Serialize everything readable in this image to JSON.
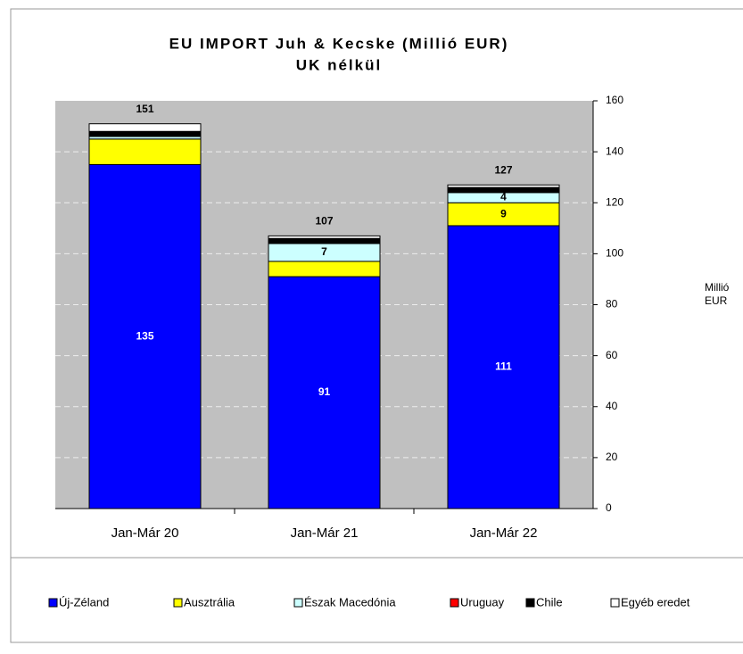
{
  "chart_data": {
    "type": "stacked_bar",
    "title": "EU IMPORT Juh & Kecske  (Millió EUR)",
    "subtitle": "UK nélkül",
    "y_axis_label": "Millió EUR",
    "categories": [
      "Jan-Már 20",
      "Jan-Már 21",
      "Jan-Már 22"
    ],
    "series": [
      {
        "name": "Új-Zéland",
        "color": "#0000ff",
        "values": [
          135,
          91,
          111
        ],
        "data_labels": [
          true,
          true,
          true
        ],
        "label_color": "#ffffff"
      },
      {
        "name": "Ausztrália",
        "color": "#ffff00",
        "values": [
          10,
          6,
          9
        ],
        "data_labels": [
          false,
          false,
          true
        ],
        "label_color": "#000000"
      },
      {
        "name": "Észak Macedónia",
        "color": "#ccffff",
        "values": [
          1,
          7,
          4
        ],
        "data_labels": [
          false,
          true,
          true
        ],
        "label_color": "#000000"
      },
      {
        "name": "Uruguay",
        "color": "#ff0000",
        "values": [
          0,
          0,
          0
        ],
        "data_labels": [
          false,
          false,
          false
        ],
        "label_color": "#000000"
      },
      {
        "name": "Chile",
        "color": "#000000",
        "values": [
          2,
          2,
          2
        ],
        "data_labels": [
          true,
          false,
          false
        ],
        "label_color": "#000000"
      },
      {
        "name": "Egyéb eredet",
        "color": "#ffffff",
        "values": [
          3,
          1,
          1
        ],
        "data_labels": [
          false,
          false,
          false
        ],
        "label_color": "#000000"
      }
    ],
    "totals": [
      151,
      107,
      127
    ],
    "ylim": [
      0,
      160
    ],
    "yticks": [
      0,
      20,
      40,
      60,
      80,
      100,
      120,
      140,
      160
    ],
    "grid": true,
    "legend": "bottom"
  }
}
